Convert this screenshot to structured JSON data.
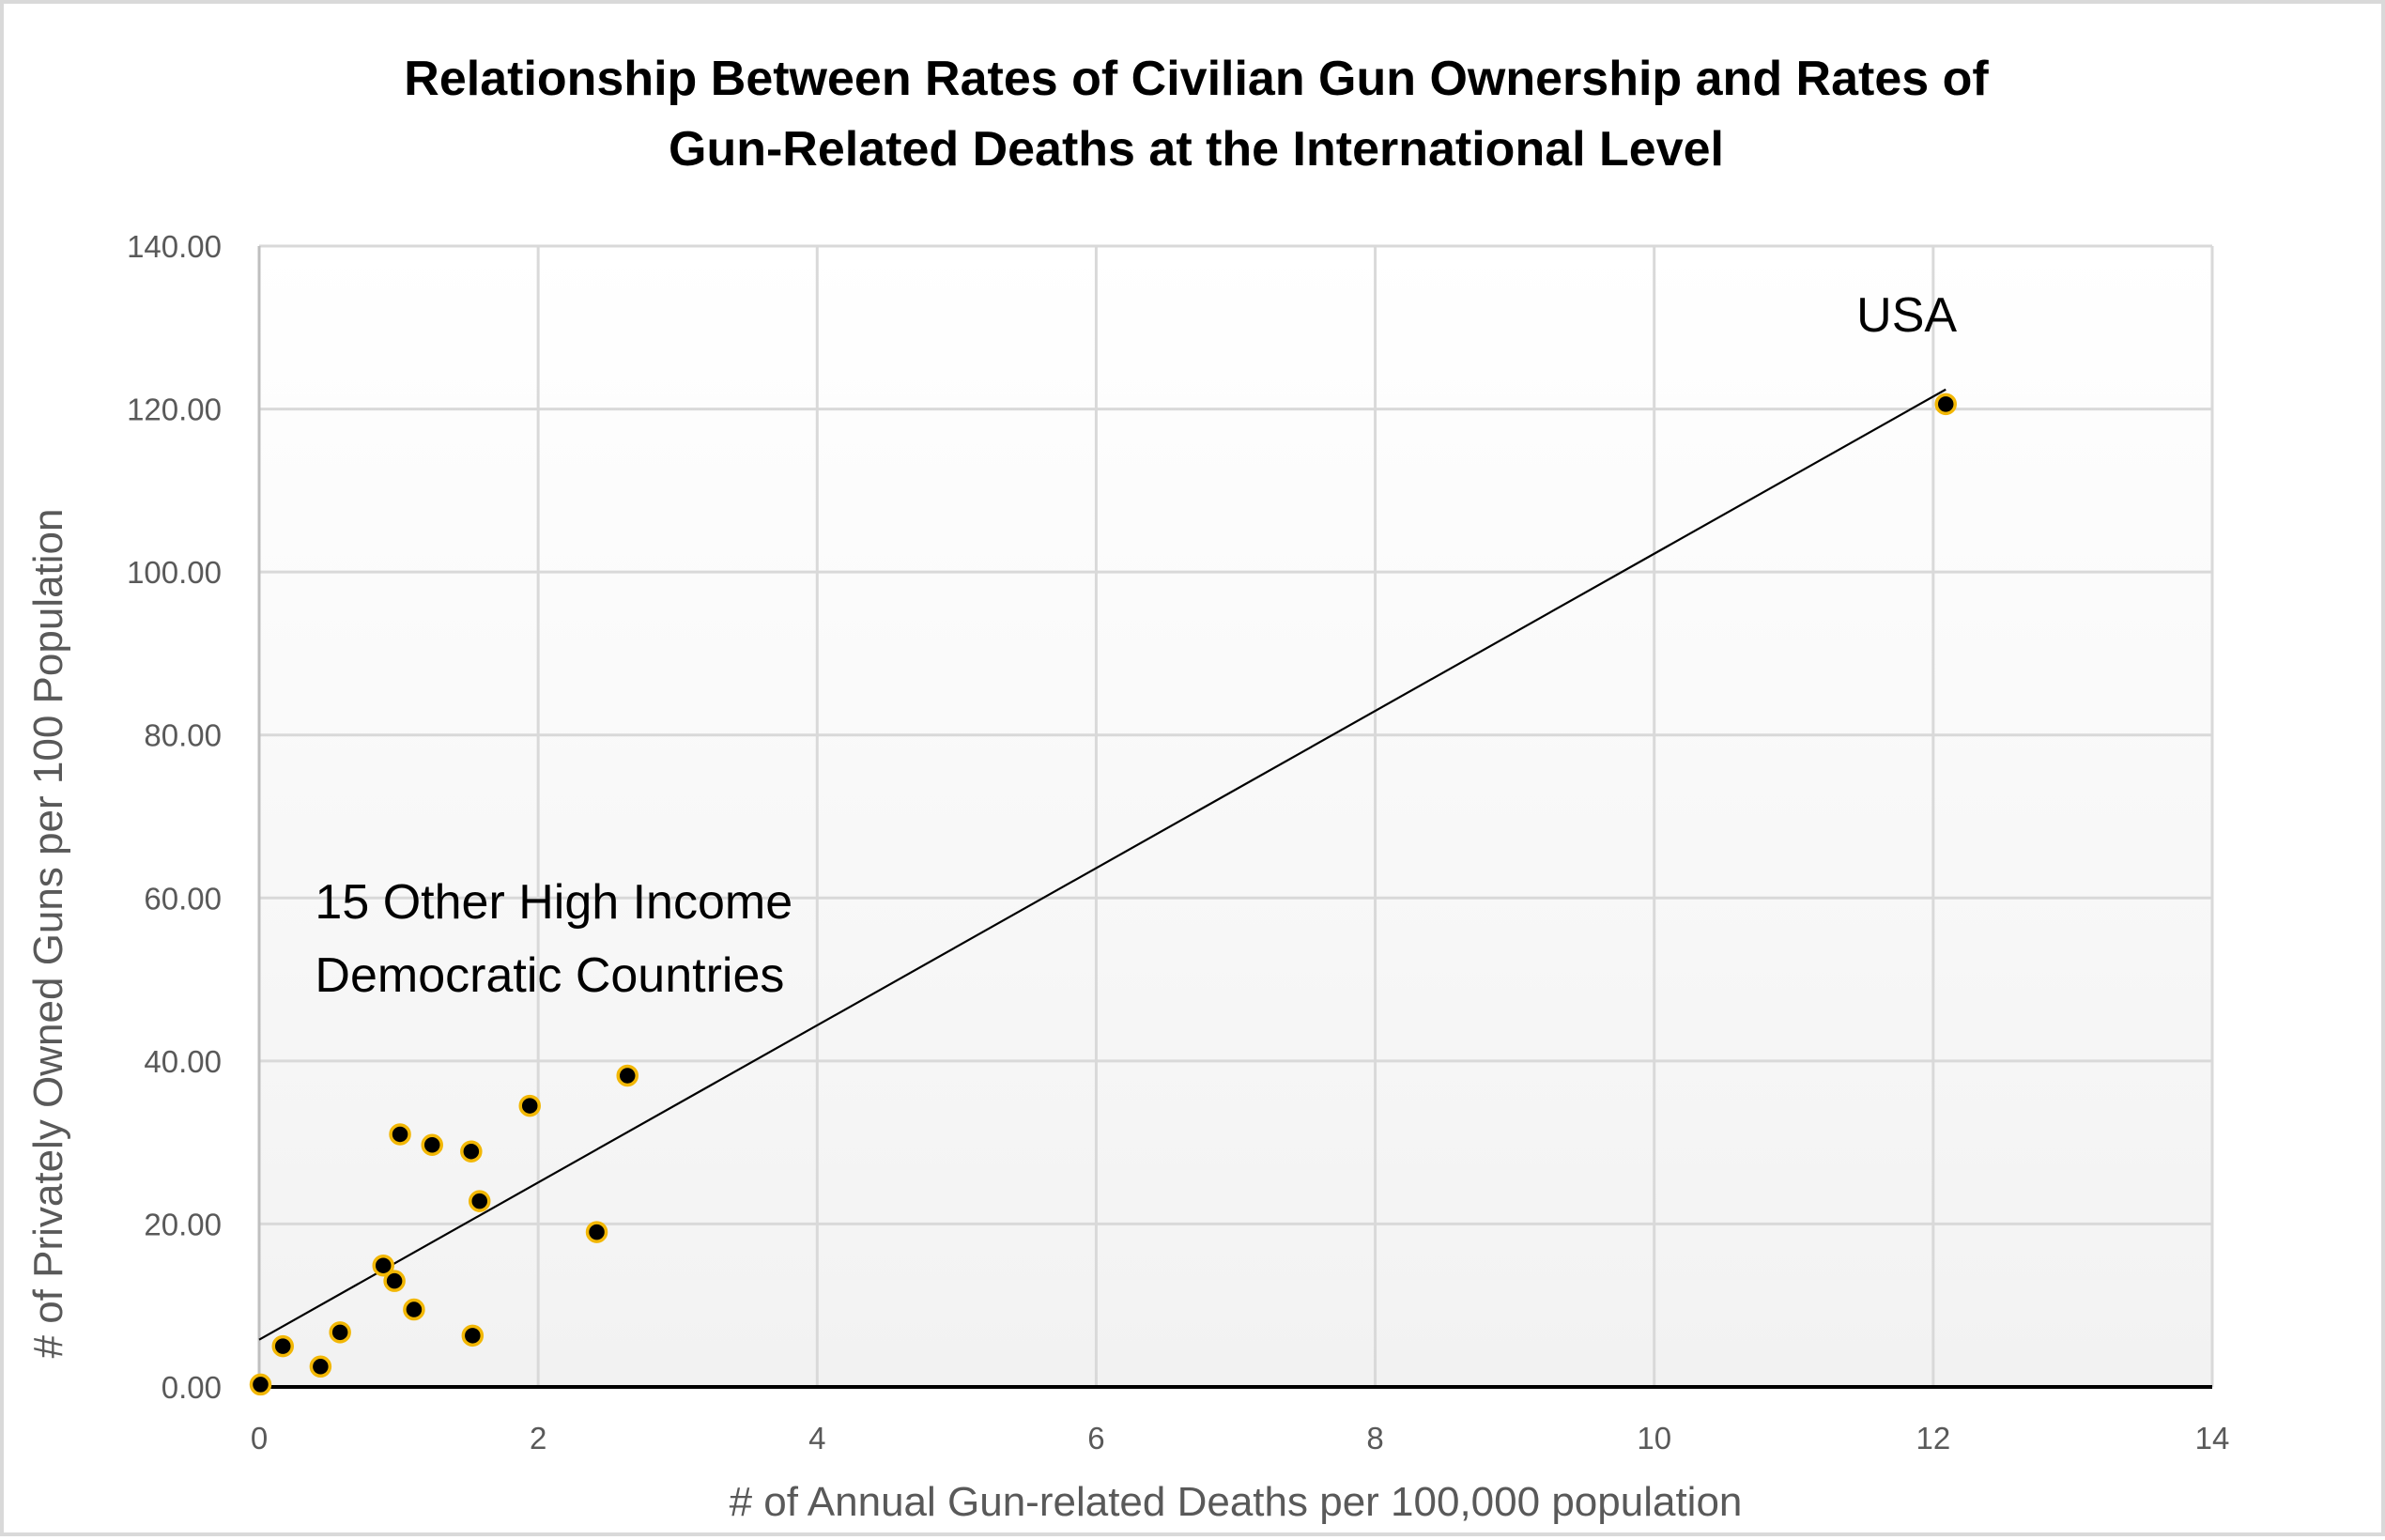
{
  "chart_data": {
    "type": "scatter",
    "title": [
      "Relationship Between Rates of Civilian Gun Ownership and Rates of",
      "Gun-Related Deaths at the International Level"
    ],
    "xlabel": "# of Annual Gun-related Deaths per 100,000 population",
    "ylabel": "# of Privately Owned Guns per 100 Population",
    "xlim": [
      0,
      14
    ],
    "ylim": [
      0,
      140
    ],
    "xticks": [
      0,
      2,
      4,
      6,
      8,
      10,
      12,
      14
    ],
    "xtick_labels": [
      "0",
      "2",
      "4",
      "6",
      "8",
      "10",
      "12",
      "14"
    ],
    "yticks": [
      0,
      20,
      40,
      60,
      80,
      100,
      120,
      140
    ],
    "ytick_labels": [
      "0.00",
      "20.00",
      "40.00",
      "60.00",
      "80.00",
      "100.00",
      "120.00",
      "140.00"
    ],
    "grid": true,
    "legend": "none",
    "series": [
      {
        "name": "Countries",
        "marker_fill": "#000000",
        "marker_edge": "#F2B705",
        "points": [
          {
            "x": 0.01,
            "y": 0.3
          },
          {
            "x": 0.17,
            "y": 5.0
          },
          {
            "x": 0.44,
            "y": 2.5
          },
          {
            "x": 0.58,
            "y": 6.7
          },
          {
            "x": 0.89,
            "y": 14.9
          },
          {
            "x": 0.97,
            "y": 13.0
          },
          {
            "x": 1.01,
            "y": 31.0
          },
          {
            "x": 1.11,
            "y": 9.5
          },
          {
            "x": 1.24,
            "y": 29.7
          },
          {
            "x": 1.52,
            "y": 28.9
          },
          {
            "x": 1.53,
            "y": 6.3
          },
          {
            "x": 1.58,
            "y": 22.8
          },
          {
            "x": 1.94,
            "y": 34.5
          },
          {
            "x": 2.42,
            "y": 19.0
          },
          {
            "x": 2.64,
            "y": 38.2
          },
          {
            "x": 12.09,
            "y": 120.6
          }
        ]
      }
    ],
    "trendline": {
      "type": "linear",
      "color": "#000000",
      "x_start": 0,
      "y_start": 5.8,
      "x_end": 12.09,
      "y_end": 122.4
    },
    "annotations": [
      {
        "id": "usa",
        "lines": [
          "USA"
        ],
        "x": 11.45,
        "y": 129.5
      },
      {
        "id": "others",
        "lines": [
          "15 Other High Income",
          "Democratic Countries"
        ],
        "x": 0.4,
        "y": 57.5
      }
    ]
  }
}
